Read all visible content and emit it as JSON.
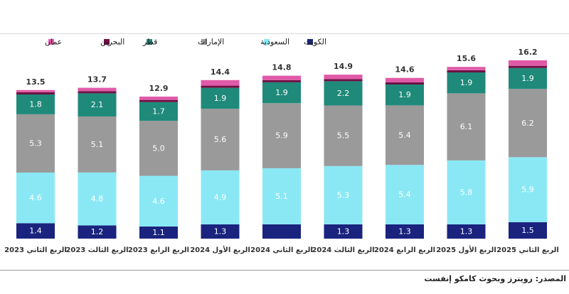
{
  "chart_data": {
    "type": "bar",
    "stacked": true,
    "categories": [
      "الربع الثاني 2025",
      "الربع الأول 2025",
      "الربع الرابع 2024",
      "الربع الثالث 2024",
      "الربع الثاني 2024",
      "الربع الأول 2024",
      "الربع الرابع 2023",
      "الربع الثالث 2023",
      "الربع الثاني 2023"
    ],
    "totals": [
      "16.2",
      "15.6",
      "14.6",
      "14.9",
      "14.8",
      "14.4",
      "12.9",
      "13.7",
      "13.5"
    ],
    "series": [
      {
        "name": "الكويت",
        "color": "#1a237e",
        "values": [
          1.5,
          1.3,
          1.3,
          1.3,
          1.3,
          1.3,
          1.1,
          1.2,
          1.4
        ],
        "labels": [
          "1.5",
          "1.3",
          "1.3",
          "1.3",
          "",
          "1.3",
          "1.1",
          "1.2",
          "1.4"
        ]
      },
      {
        "name": "السعودية",
        "color": "#8ae8f5",
        "values": [
          5.9,
          5.8,
          5.4,
          5.3,
          5.1,
          4.9,
          4.6,
          4.8,
          4.6
        ],
        "labels": [
          "5.9",
          "5.8",
          "5.4",
          "5.3",
          "5.1",
          "4.9",
          "4.6",
          "4.8",
          "4.6"
        ]
      },
      {
        "name": "الإمارات",
        "color": "#9a9a9a",
        "values": [
          6.2,
          6.1,
          5.4,
          5.5,
          5.9,
          5.6,
          5.0,
          5.1,
          5.3
        ],
        "labels": [
          "6.2",
          "6.1",
          "5.4",
          "5.5",
          "5.9",
          "5.6",
          "5.0",
          "5.1",
          "5.3"
        ]
      },
      {
        "name": "قطر",
        "color": "#1f8a7a",
        "values": [
          1.9,
          1.9,
          1.9,
          2.2,
          1.9,
          1.9,
          1.7,
          2.1,
          1.8
        ],
        "labels": [
          "1.9",
          "1.9",
          "1.9",
          "2.2",
          "1.9",
          "1.9",
          "1.7",
          "2.1",
          "1.8"
        ]
      },
      {
        "name": "البحرين",
        "color": "#6d1043",
        "values": [
          0.2,
          0.2,
          0.2,
          0.2,
          0.2,
          0.2,
          0.2,
          0.2,
          0.2
        ],
        "labels": [
          "",
          "",
          "",
          "",
          "",
          "",
          "",
          "",
          ""
        ]
      },
      {
        "name": "عمان",
        "color": "#e05aa8",
        "values": [
          0.5,
          0.3,
          0.4,
          0.4,
          0.4,
          0.5,
          0.3,
          0.3,
          0.2
        ],
        "labels": [
          "",
          "",
          "",
          "",
          "",
          "",
          "",
          "",
          ""
        ]
      }
    ],
    "legend_position": "top",
    "grid": false
  },
  "source": "المصدر: رويترز وبحوث كامكو إنفست"
}
